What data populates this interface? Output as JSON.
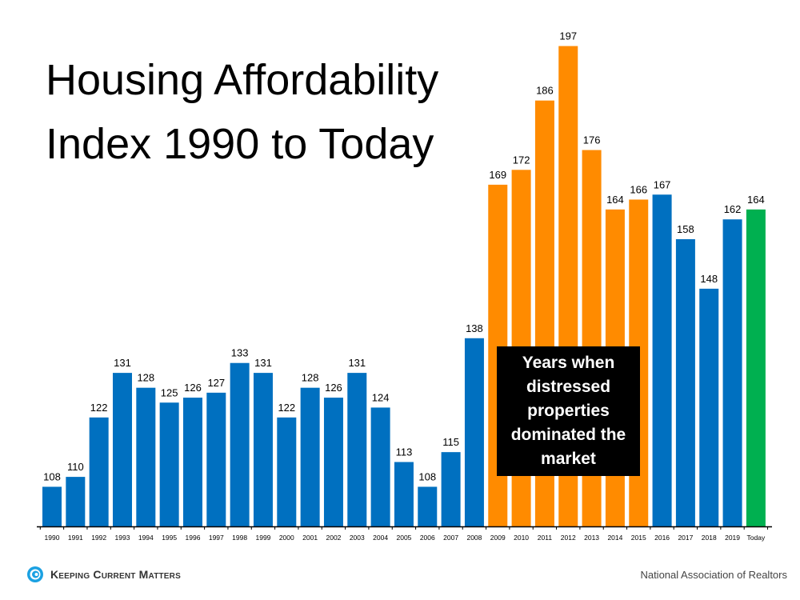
{
  "chart_data": {
    "type": "bar",
    "title": "Housing Affordability Index 1990 to Today",
    "title_lines": [
      "Housing Affordability",
      "Index 1990 to Today"
    ],
    "categories": [
      "1990",
      "1991",
      "1992",
      "1993",
      "1994",
      "1995",
      "1996",
      "1997",
      "1998",
      "1999",
      "2000",
      "2001",
      "2002",
      "2003",
      "2004",
      "2005",
      "2006",
      "2007",
      "2008",
      "2009",
      "2010",
      "2011",
      "2012",
      "2013",
      "2014",
      "2015",
      "2016",
      "2017",
      "2018",
      "2019",
      "Today"
    ],
    "values": [
      108,
      110,
      122,
      131,
      128,
      125,
      126,
      127,
      133,
      131,
      122,
      128,
      126,
      131,
      124,
      113,
      108,
      115,
      138,
      169,
      172,
      186,
      197,
      176,
      164,
      166,
      167,
      158,
      148,
      162,
      164
    ],
    "bar_groups": [
      "normal",
      "normal",
      "normal",
      "normal",
      "normal",
      "normal",
      "normal",
      "normal",
      "normal",
      "normal",
      "normal",
      "normal",
      "normal",
      "normal",
      "normal",
      "normal",
      "normal",
      "normal",
      "normal",
      "distressed",
      "distressed",
      "distressed",
      "distressed",
      "distressed",
      "distressed",
      "distressed",
      "normal",
      "normal",
      "normal",
      "normal",
      "today"
    ],
    "colors": {
      "normal": "#0070c0",
      "distressed": "#ff8b00",
      "today": "#00b050"
    },
    "ylim": [
      100,
      200
    ],
    "y_axis_shown": false,
    "grid": false,
    "data_labels": true,
    "annotation": "Years when distressed properties dominated the market"
  },
  "footer": {
    "logo_text": "Keeping Current Matters",
    "source": "National Association of Realtors"
  }
}
